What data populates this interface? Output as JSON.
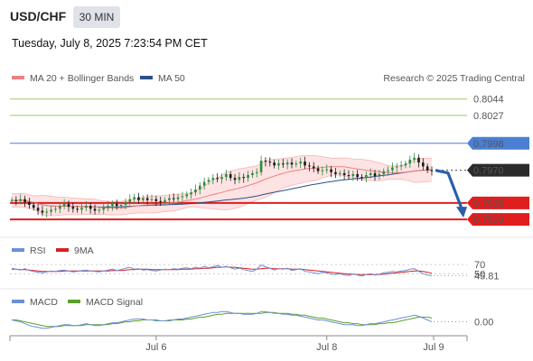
{
  "header": {
    "pair": "USD/CHF",
    "timeframe": "30 MIN",
    "timestamp": "Tuesday, July 8, 2025 7:23:54 PM CET"
  },
  "legend": {
    "ma20_label": "MA 20 + Bollinger Bands",
    "ma50_label": "MA 50",
    "credit": "Research © 2025 Trading Central"
  },
  "colors": {
    "ma20": "#f08080",
    "ma50": "#2a4f8a",
    "band_fill": "#fde3e3",
    "target_green": "#9cc96b",
    "pivot_blue": "#4a7fd4",
    "support_red": "#e01e1e",
    "arrow": "#2a5fa8",
    "candle_up": "#2e8b3e",
    "candle_down": "#1a1a1a",
    "rsi": "#6c8fd8",
    "rsi_ma": "#d62020",
    "macd": "#6c8fd8",
    "macd_signal": "#5aa02c"
  },
  "chart_data": {
    "type": "candlestick",
    "ylim": [
      0.7905,
      0.8055
    ],
    "x_ticks": [
      "Jul 6",
      "Jul 8",
      "Jul 9"
    ],
    "close": [
      0.7939,
      0.7938,
      0.794,
      0.7937,
      0.7934,
      0.7931,
      0.7928,
      0.7926,
      0.7927,
      0.7929,
      0.793,
      0.7933,
      0.7935,
      0.7932,
      0.793,
      0.7929,
      0.7931,
      0.7933,
      0.793,
      0.7928,
      0.7929,
      0.7931,
      0.7933,
      0.7935,
      0.7933,
      0.7934,
      0.7937,
      0.794,
      0.7942,
      0.7939,
      0.7941,
      0.7939,
      0.794,
      0.7938,
      0.7937,
      0.7939,
      0.7941,
      0.794,
      0.7942,
      0.7943,
      0.7945,
      0.7947,
      0.795,
      0.7954,
      0.7958,
      0.796,
      0.7962,
      0.7961,
      0.7963,
      0.7966,
      0.7962,
      0.796,
      0.7963,
      0.7962,
      0.7965,
      0.7967,
      0.7968,
      0.798,
      0.7979,
      0.7978,
      0.7975,
      0.7977,
      0.7976,
      0.7978,
      0.7976,
      0.7977,
      0.7979,
      0.7975,
      0.7974,
      0.7972,
      0.7969,
      0.797,
      0.7971,
      0.7968,
      0.7966,
      0.7967,
      0.7965,
      0.7964,
      0.7966,
      0.7963,
      0.7962,
      0.7965,
      0.7967,
      0.7964,
      0.7966,
      0.7969,
      0.797,
      0.7973,
      0.7974,
      0.7975,
      0.7977,
      0.7981,
      0.7983,
      0.7978,
      0.7974,
      0.797,
      0.7969
    ],
    "price_levels": [
      {
        "label": "0.8044",
        "value": 0.8044,
        "role": "target"
      },
      {
        "label": "0.8027",
        "value": 0.8027,
        "role": "target"
      },
      {
        "label": "0.7998",
        "value": 0.7998,
        "role": "pivot"
      },
      {
        "label": "0.7970",
        "value": 0.797,
        "role": "last"
      },
      {
        "label": "0.7936",
        "value": 0.7936,
        "role": "support"
      },
      {
        "label": "0.7919",
        "value": 0.7919,
        "role": "support"
      }
    ],
    "arrow": {
      "from": 0.797,
      "to": 0.7919
    },
    "rsi": {
      "label": "RSI",
      "ma_label": "9MA",
      "levels": [
        "70",
        "50"
      ],
      "current_label": "45.81",
      "current": 45.81,
      "ylim": [
        25,
        80
      ],
      "values": [
        62,
        60,
        58,
        61,
        57,
        55,
        53,
        52,
        54,
        56,
        55,
        57,
        58,
        56,
        54,
        55,
        57,
        58,
        56,
        55,
        54,
        56,
        58,
        60,
        57,
        59,
        62,
        64,
        60,
        61,
        58,
        59,
        57,
        56,
        58,
        60,
        59,
        61,
        60,
        62,
        63,
        61,
        64,
        62,
        66,
        63,
        65,
        68,
        64,
        66,
        63,
        60,
        62,
        59,
        57,
        55,
        60,
        69,
        65,
        62,
        58,
        61,
        60,
        62,
        57,
        59,
        61,
        55,
        54,
        52,
        50,
        53,
        52,
        49,
        48,
        50,
        47,
        46,
        49,
        47,
        45,
        48,
        50,
        47,
        49,
        52,
        53,
        55,
        54,
        56,
        57,
        60,
        61,
        55,
        50,
        47,
        45.81
      ],
      "ma": [
        60,
        60,
        59,
        59,
        58,
        57,
        56,
        55,
        55,
        55,
        55,
        55,
        56,
        56,
        56,
        56,
        56,
        56,
        56,
        56,
        56,
        56,
        56,
        57,
        57,
        57,
        58,
        59,
        59,
        60,
        60,
        60,
        59,
        59,
        59,
        59,
        59,
        59,
        59,
        60,
        60,
        60,
        61,
        61,
        62,
        62,
        63,
        64,
        64,
        65,
        64,
        64,
        63,
        62,
        61,
        60,
        60,
        61,
        62,
        62,
        61,
        61,
        61,
        61,
        60,
        60,
        60,
        59,
        58,
        57,
        56,
        55,
        54,
        53,
        52,
        51,
        50,
        49,
        49,
        48,
        48,
        48,
        48,
        48,
        48,
        49,
        50,
        51,
        52,
        53,
        54,
        55,
        56,
        56,
        55,
        53,
        51
      ],
      "ref_lines": [
        70,
        50
      ]
    },
    "macd": {
      "label": "MACD",
      "signal_label": "MACD Signal",
      "current_label": "0.00",
      "ylim": [
        -0.0012,
        0.0016
      ],
      "macd": [
        0.0002,
        0.0001,
        0.0,
        -0.0002,
        -0.0004,
        -0.0005,
        -0.0006,
        -0.0007,
        -0.0007,
        -0.0006,
        -0.0005,
        -0.0004,
        -0.0003,
        -0.0003,
        -0.0004,
        -0.0004,
        -0.0003,
        -0.0002,
        -0.0003,
        -0.0004,
        -0.0004,
        -0.0003,
        -0.0002,
        -0.0001,
        -0.0001,
        0.0,
        0.0001,
        0.0002,
        0.0003,
        0.0003,
        0.0003,
        0.0002,
        0.0002,
        0.0001,
        0.0001,
        0.0001,
        0.0002,
        0.0002,
        0.0003,
        0.0003,
        0.0004,
        0.0005,
        0.0006,
        0.0007,
        0.0008,
        0.0009,
        0.001,
        0.001,
        0.0011,
        0.0011,
        0.001,
        0.0009,
        0.0009,
        0.0008,
        0.0008,
        0.0008,
        0.0009,
        0.0011,
        0.0011,
        0.001,
        0.0009,
        0.0009,
        0.0008,
        0.0008,
        0.0007,
        0.0007,
        0.0006,
        0.0005,
        0.0004,
        0.0003,
        0.0002,
        0.0002,
        0.0001,
        0.0,
        -0.0001,
        -0.0002,
        -0.0003,
        -0.0003,
        -0.0003,
        -0.0004,
        -0.0004,
        -0.0003,
        -0.0002,
        -0.0002,
        -0.0001,
        0.0,
        0.0001,
        0.0002,
        0.0003,
        0.0004,
        0.0005,
        0.0006,
        0.0007,
        0.0006,
        0.0004,
        0.0002,
        0.0
      ],
      "signal": [
        0.0002,
        0.0002,
        0.0001,
        0.0,
        -0.0001,
        -0.0002,
        -0.0003,
        -0.0004,
        -0.0005,
        -0.0005,
        -0.0005,
        -0.0005,
        -0.0004,
        -0.0004,
        -0.0004,
        -0.0004,
        -0.0004,
        -0.0003,
        -0.0003,
        -0.0003,
        -0.0003,
        -0.0003,
        -0.0003,
        -0.0002,
        -0.0002,
        -0.0001,
        0.0,
        0.0,
        0.0001,
        0.0001,
        0.0002,
        0.0002,
        0.0002,
        0.0002,
        0.0001,
        0.0001,
        0.0001,
        0.0002,
        0.0002,
        0.0002,
        0.0003,
        0.0003,
        0.0004,
        0.0005,
        0.0005,
        0.0006,
        0.0007,
        0.0008,
        0.0008,
        0.0009,
        0.0009,
        0.0009,
        0.0009,
        0.0009,
        0.0009,
        0.0009,
        0.0009,
        0.0009,
        0.001,
        0.001,
        0.001,
        0.0009,
        0.0009,
        0.0009,
        0.0008,
        0.0008,
        0.0007,
        0.0007,
        0.0006,
        0.0005,
        0.0004,
        0.0004,
        0.0003,
        0.0002,
        0.0001,
        0.0,
        -0.0001,
        -0.0001,
        -0.0002,
        -0.0002,
        -0.0003,
        -0.0003,
        -0.0003,
        -0.0003,
        -0.0002,
        -0.0002,
        -0.0001,
        -0.0001,
        0.0,
        0.0001,
        0.0002,
        0.0003,
        0.0004,
        0.0005,
        0.0005,
        0.0005,
        0.0004
      ]
    }
  }
}
